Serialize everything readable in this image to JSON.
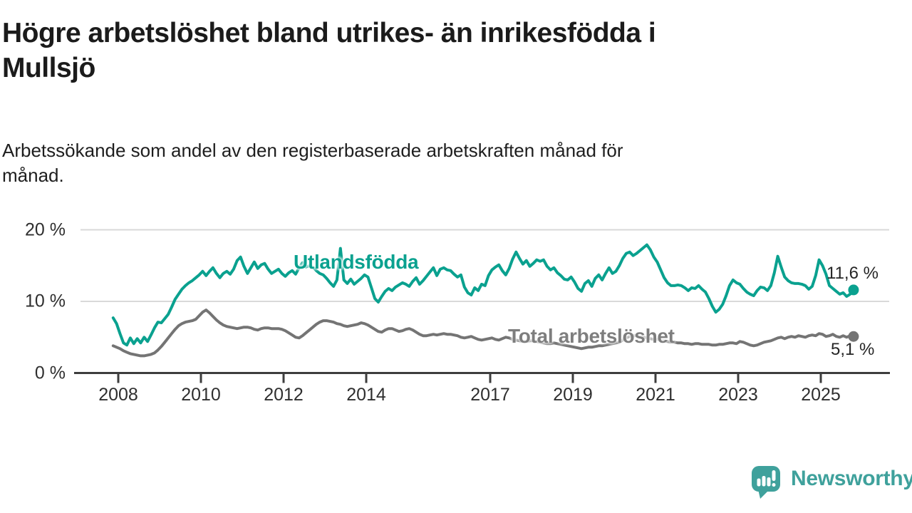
{
  "header": {
    "title_lines": [
      "Högre arbetslöshet bland utrikes- än inrikesfödda i",
      "Mullsjö"
    ],
    "subtitle_lines": [
      "Arbetssökande som andel av den registerbaserade arbetskraften månad för",
      "månad."
    ]
  },
  "colors": {
    "foreign_born_line": "#0aa18f",
    "total_line": "#747474",
    "total_label": "#7e7e7e",
    "grid": "#d9d9d9",
    "axis": "#3d3d3d",
    "tick_text": "#2f2f2f",
    "value_text": "#262626",
    "brand_teal": "#3fa19c"
  },
  "branding": {
    "logo_text": "Newsworthy",
    "logo_icon": "speech-bubble-bar-chart-icon"
  },
  "chart_data": {
    "type": "line",
    "unit": "%",
    "ylim": [
      0,
      20
    ],
    "grid": "horizontal-only",
    "x_start": "2007-11",
    "x_end": "2025-10",
    "x_ticks": [
      {
        "label": "2008",
        "year": 2008
      },
      {
        "label": "2010",
        "year": 2010
      },
      {
        "label": "2012",
        "year": 2012
      },
      {
        "label": "2014",
        "year": 2014
      },
      {
        "label": "2017",
        "year": 2017
      },
      {
        "label": "2019",
        "year": 2019
      },
      {
        "label": "2021",
        "year": 2021
      },
      {
        "label": "2023",
        "year": 2023
      },
      {
        "label": "2025",
        "year": 2025
      }
    ],
    "y_ticks": [
      {
        "label": "0 %",
        "value": 0
      },
      {
        "label": "10 %",
        "value": 10
      },
      {
        "label": "20 %",
        "value": 20
      }
    ],
    "series": [
      {
        "name": "Utlandsfödda",
        "color": "#0aa18f",
        "end_label": "11,6 %",
        "end_value": 11.6,
        "start": "2007-11",
        "step": "month",
        "values": [
          7.7,
          6.9,
          5.5,
          4.2,
          3.9,
          4.9,
          4.1,
          4.8,
          4.2,
          5.0,
          4.4,
          5.3,
          6.3,
          7.1,
          7.0,
          7.6,
          8.2,
          9.2,
          10.3,
          11.0,
          11.7,
          12.2,
          12.6,
          12.9,
          13.3,
          13.7,
          14.2,
          13.6,
          14.2,
          14.7,
          13.9,
          13.3,
          13.9,
          14.2,
          13.8,
          14.5,
          15.7,
          16.2,
          14.9,
          13.9,
          14.7,
          15.5,
          14.6,
          15.1,
          15.3,
          14.5,
          13.9,
          14.2,
          14.5,
          13.9,
          13.5,
          14.0,
          14.3,
          13.8,
          14.7,
          15.4,
          14.8,
          15.0,
          14.8,
          14.3,
          13.9,
          13.7,
          13.2,
          12.6,
          12.1,
          13.0,
          17.4,
          13.0,
          12.5,
          13.1,
          12.4,
          12.8,
          13.2,
          13.7,
          13.4,
          11.9,
          10.4,
          9.9,
          10.7,
          11.4,
          11.8,
          11.5,
          12.0,
          12.3,
          12.6,
          12.4,
          12.1,
          12.8,
          13.3,
          12.4,
          12.9,
          13.5,
          14.1,
          14.7,
          13.6,
          14.5,
          14.7,
          14.4,
          14.3,
          13.8,
          13.4,
          13.7,
          12.0,
          11.2,
          10.9,
          11.9,
          11.5,
          12.4,
          12.2,
          13.6,
          14.4,
          14.8,
          15.1,
          14.3,
          13.7,
          14.6,
          15.9,
          16.9,
          16.0,
          15.2,
          15.7,
          14.9,
          15.3,
          15.8,
          15.6,
          15.8,
          14.9,
          14.4,
          14.7,
          14.0,
          13.6,
          13.1,
          13.0,
          13.4,
          12.7,
          11.8,
          11.4,
          12.5,
          12.9,
          12.1,
          13.2,
          13.7,
          13.0,
          13.9,
          14.7,
          13.9,
          14.2,
          15.0,
          16.0,
          16.7,
          16.9,
          16.4,
          16.7,
          17.1,
          17.5,
          17.9,
          17.2,
          16.2,
          15.5,
          14.4,
          13.3,
          12.6,
          12.2,
          12.2,
          12.3,
          12.2,
          11.9,
          11.5,
          11.9,
          11.8,
          12.2,
          11.7,
          11.3,
          10.4,
          9.3,
          8.5,
          8.9,
          9.6,
          10.8,
          12.2,
          13.0,
          12.6,
          12.4,
          11.8,
          11.3,
          11.0,
          10.8,
          11.5,
          12.0,
          11.9,
          11.5,
          12.2,
          14.0,
          16.3,
          14.8,
          13.4,
          12.9,
          12.6,
          12.5,
          12.5,
          12.4,
          12.2,
          11.7,
          12.1,
          13.6,
          15.8,
          15.0,
          13.8,
          12.2,
          11.8,
          11.4,
          11.0,
          11.2,
          10.7,
          11.0,
          11.6
        ]
      },
      {
        "name": "Total arbetslöshet",
        "color": "#747474",
        "end_label": "5,1 %",
        "end_value": 5.1,
        "start": "2007-11",
        "step": "month",
        "values": [
          3.8,
          3.6,
          3.4,
          3.1,
          2.9,
          2.7,
          2.6,
          2.5,
          2.4,
          2.4,
          2.5,
          2.6,
          2.8,
          3.2,
          3.7,
          4.3,
          4.9,
          5.5,
          6.1,
          6.6,
          6.9,
          7.1,
          7.2,
          7.3,
          7.5,
          8.0,
          8.5,
          8.8,
          8.4,
          7.9,
          7.4,
          7.0,
          6.7,
          6.5,
          6.4,
          6.3,
          6.2,
          6.3,
          6.4,
          6.4,
          6.3,
          6.1,
          6.0,
          6.2,
          6.3,
          6.3,
          6.2,
          6.2,
          6.2,
          6.1,
          5.9,
          5.6,
          5.3,
          5.0,
          4.9,
          5.2,
          5.6,
          6.0,
          6.4,
          6.8,
          7.1,
          7.3,
          7.3,
          7.2,
          7.1,
          6.9,
          6.8,
          6.6,
          6.5,
          6.6,
          6.7,
          6.8,
          7.0,
          6.9,
          6.7,
          6.4,
          6.1,
          5.8,
          5.7,
          6.0,
          6.2,
          6.2,
          6.0,
          5.8,
          5.9,
          6.1,
          6.2,
          6.0,
          5.7,
          5.4,
          5.2,
          5.2,
          5.3,
          5.4,
          5.3,
          5.4,
          5.5,
          5.4,
          5.4,
          5.3,
          5.2,
          5.0,
          4.9,
          5.0,
          5.1,
          4.9,
          4.7,
          4.6,
          4.7,
          4.8,
          4.9,
          4.7,
          4.6,
          4.8,
          5.0,
          4.9,
          4.7,
          4.6,
          4.5,
          4.4,
          4.4,
          4.5,
          4.5,
          4.4,
          4.3,
          4.2,
          4.1,
          4.1,
          4.2,
          4.1,
          4.0,
          3.9,
          3.8,
          3.7,
          3.6,
          3.5,
          3.4,
          3.5,
          3.6,
          3.6,
          3.7,
          3.8,
          3.8,
          3.9,
          4.0,
          4.1,
          4.2,
          4.3,
          4.6,
          4.9,
          5.1,
          5.2,
          5.2,
          5.1,
          5.0,
          4.9,
          4.8,
          4.7,
          4.7,
          4.6,
          4.5,
          4.4,
          4.3,
          4.3,
          4.2,
          4.2,
          4.1,
          4.1,
          4.0,
          4.1,
          4.1,
          4.0,
          4.0,
          4.0,
          3.9,
          3.9,
          4.0,
          4.0,
          4.1,
          4.2,
          4.2,
          4.1,
          4.4,
          4.3,
          4.1,
          3.9,
          3.8,
          3.9,
          4.1,
          4.3,
          4.4,
          4.5,
          4.7,
          4.9,
          5.0,
          4.8,
          5.0,
          5.1,
          5.0,
          5.2,
          5.1,
          5.0,
          5.2,
          5.3,
          5.2,
          5.5,
          5.4,
          5.1,
          5.2,
          5.4,
          5.1,
          5.0,
          5.2,
          5.0,
          5.2,
          5.1
        ]
      }
    ]
  }
}
